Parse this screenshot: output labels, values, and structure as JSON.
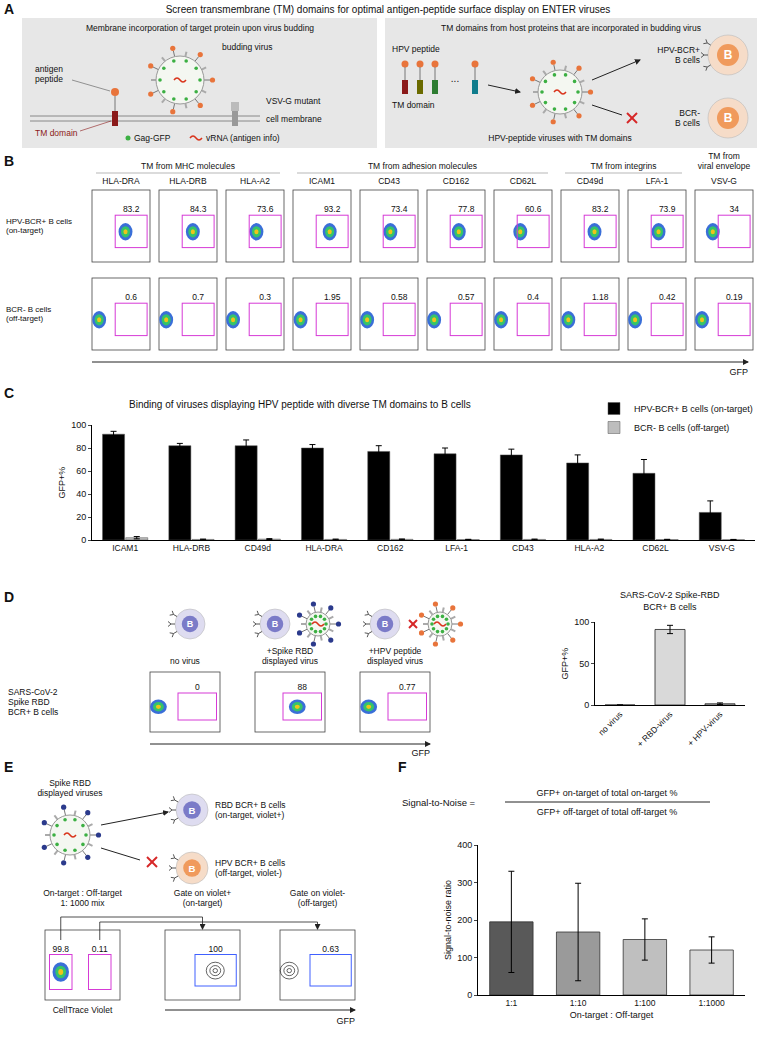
{
  "panel_labels": [
    "A",
    "B",
    "C",
    "D",
    "E",
    "F"
  ],
  "cell_letter": "B",
  "panel_a": {
    "title": "Screen transmembrane (TM) domains for optimal antigen-peptide surface display on ENTER viruses",
    "left": {
      "title": "Membrane incorporation of target protein upon virus budding",
      "antigen_peptide": "antigen\npeptide",
      "budding_virus": "budding virus",
      "vsvg": "VSV-G mutant",
      "membrane": "cell membrane",
      "tm": "TM domain",
      "gag": "Gag-GFP",
      "vrna": "vRNA (antigen info)"
    },
    "right": {
      "title": "TM domains from host proteins that are incorporated in budding virus",
      "peptide": "HPV peptide",
      "tm": "TM domain",
      "ellipsis": "...",
      "viruses": "HPV-peptide viruses with TM domains",
      "on_cells": "HPV-BCR+\nB cells",
      "off_cells": "BCR-\nB cells"
    }
  },
  "panel_b": {
    "groups": [
      {
        "label": "TM from MHC molecules",
        "columns": [
          "HLA-DRA",
          "HLA-DRB",
          "HLA-A2"
        ]
      },
      {
        "label": "TM from adhesion molecules",
        "columns": [
          "ICAM1",
          "CD43",
          "CD162",
          "CD62L"
        ]
      },
      {
        "label": "TM from integrins",
        "columns": [
          "CD49d",
          "LFA-1"
        ]
      },
      {
        "label": "TM from\nviral envelope",
        "columns": [
          "VSV-G"
        ]
      }
    ],
    "rows": [
      {
        "label": "HPV-BCR+ B cells\n(on-target)",
        "values": [
          83.2,
          84.3,
          73.6,
          93.2,
          73.4,
          77.8,
          60.6,
          83.2,
          73.9,
          34
        ]
      },
      {
        "label": "BCR- B cells\n(off-target)",
        "values": [
          0.6,
          0.7,
          0.3,
          1.95,
          0.58,
          0.57,
          0.4,
          1.18,
          0.42,
          0.19
        ]
      }
    ],
    "x_label": "GFP"
  },
  "panel_d": {
    "row_label": "SARS-CoV-2\nSpike RBD\nBCR+ B cells",
    "flows": [
      {
        "title": "no virus",
        "value": 0
      },
      {
        "title": "+Spike RBD\ndisplayed virus",
        "value": 88
      },
      {
        "title": "+HPV peptide\ndisplayed virus",
        "value": 0.77
      }
    ],
    "x_label": "GFP"
  },
  "panel_e": {
    "viruses": "Spike RBD\ndisplayed viruses",
    "on_cells": "RBD BCR+ B cells\n(on-target, violet+)",
    "off_cells": "HPV BCR+ B cells\n(off-target, violet-)",
    "flows": [
      {
        "title": "On-target : Off-target\n1: 1000 mix",
        "gates": [
          99.8,
          0.11
        ],
        "x_label": "CellTrace Violet"
      },
      {
        "title": "Gate on violet+\n(on-target)",
        "gates": [
          100
        ]
      },
      {
        "title": "Gate on violet-\n(off-target)",
        "gates": [
          0.63
        ]
      }
    ],
    "x_label": "GFP"
  },
  "panel_f": {
    "lhs": "Signal-to-Noise =",
    "numerator": "GFP+ on-target of total on-target %",
    "denominator": "GFP+ off-target of total off-target %"
  },
  "chart_data": [
    {
      "type": "bar",
      "title": "Binding of viruses displaying HPV peptide with diverse TM domains to B cells",
      "categories": [
        "ICAM1",
        "HLA-DRB",
        "CD49d",
        "HLA-DRA",
        "CD162",
        "LFA-1",
        "CD43",
        "HLA-A2",
        "CD62L",
        "VSV-G"
      ],
      "series": [
        {
          "name": "HPV-BCR+ B cells (on-target)",
          "color": "#000000",
          "values": [
            92,
            82,
            82,
            80,
            77,
            75,
            74,
            67,
            58,
            24
          ],
          "errors": [
            2.5,
            2,
            5,
            3,
            5,
            5,
            5,
            7,
            12,
            10
          ]
        },
        {
          "name": "BCR- B cells (off-target)",
          "color": "#bdbdbd",
          "values": [
            2,
            0.5,
            0.8,
            0.5,
            0.6,
            0.4,
            0.5,
            0.5,
            0.4,
            0.3
          ],
          "errors": [
            1,
            0.3,
            0.4,
            0.3,
            0.3,
            0.2,
            0.3,
            0.3,
            0.2,
            0.2
          ]
        }
      ],
      "y_label": "GFP+%",
      "ylim": [
        0,
        100
      ],
      "yticks": [
        0,
        20,
        40,
        60,
        80,
        100
      ],
      "legend": "top-right"
    },
    {
      "type": "bar",
      "title": "SARS-CoV-2 Spike-RBD\nBCR+ B cells",
      "categories": [
        "no virus",
        "+ RBD-virus",
        "+ HPV-virus"
      ],
      "values": [
        0,
        91,
        1.5
      ],
      "errors": [
        0,
        5,
        1
      ],
      "color": "#d9d9d9",
      "y_label": "GFP+%",
      "ylim": [
        0,
        100
      ],
      "yticks": [
        0,
        50,
        100
      ]
    },
    {
      "type": "bar",
      "categories": [
        "1:1",
        "1:10",
        "1:100",
        "1:1000"
      ],
      "values": [
        195,
        168,
        148,
        120
      ],
      "errors": [
        135,
        130,
        55,
        35
      ],
      "colors": [
        "#595959",
        "#9a9a9a",
        "#bfbfbf",
        "#d9d9d9"
      ],
      "y_label": "Signal-to-noise ratio",
      "x_label": "On-target : Off-target",
      "ylim": [
        0,
        400
      ],
      "yticks": [
        0,
        100,
        200,
        300,
        400
      ]
    }
  ]
}
